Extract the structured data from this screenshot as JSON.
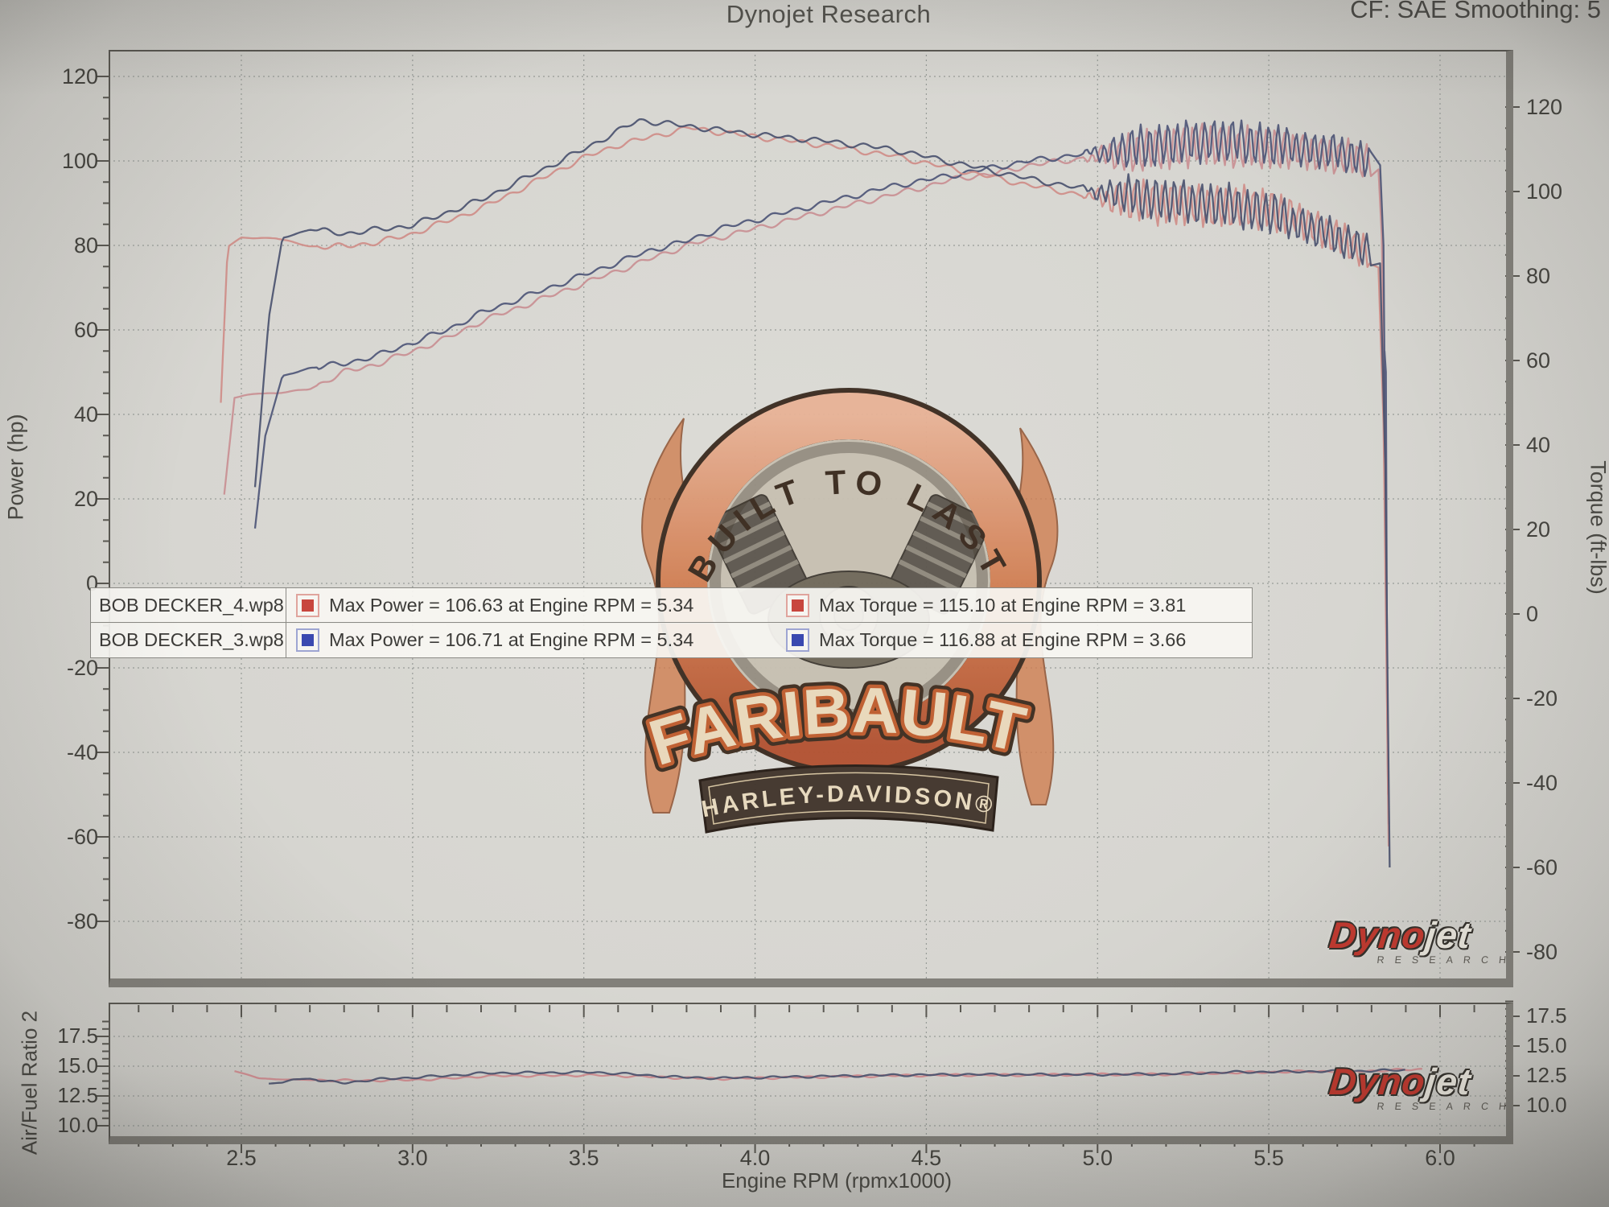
{
  "header": {
    "title": "Dynojet Research",
    "cf_label": "CF: SAE Smoothing: 5"
  },
  "main_chart": {
    "y_left": {
      "label": "Power (hp)"
    },
    "y_right": {
      "label": "Torque (ft-lbs)"
    },
    "x": {
      "label": "Engine RPM (rpmx1000)"
    },
    "legend": {
      "rows": [
        {
          "file": "BOB DECKER_4.wp8",
          "color": "#c8463e",
          "power": "Max Power = 106.63 at Engine RPM = 5.34",
          "torque": "Max Torque = 115.10 at Engine RPM = 3.81"
        },
        {
          "file": "BOB DECKER_3.wp8",
          "color": "#3a49b0",
          "power": "Max Power = 106.71 at Engine RPM = 5.34",
          "torque": "Max Torque = 116.88 at Engine RPM = 3.66"
        }
      ]
    }
  },
  "afr_chart": {
    "label": "Air/Fuel Ratio 2"
  },
  "watermark": {
    "arc_text": "BUILT TO LAST",
    "dealer": "FARIBAULT",
    "brand": "HARLEY-DAVIDSON®"
  },
  "dynojet": {
    "part1": "Dyno",
    "part2": "jet",
    "sub": "RESEARCH"
  },
  "chart_data": [
    {
      "type": "line",
      "title": "Dynojet Research",
      "xlabel": "Engine RPM (rpmx1000)",
      "ylabel_left": "Power (hp)",
      "ylabel_right": "Torque (ft-lbs)",
      "x_ticks": [
        2.5,
        3.0,
        3.5,
        4.0,
        4.5,
        5.0,
        5.5,
        6.0
      ],
      "y_ticks": [
        120,
        100,
        80,
        60,
        40,
        20,
        0,
        -20,
        -40,
        -60,
        -80
      ],
      "xlim": [
        2.1,
        6.2
      ],
      "ylim": [
        -80,
        120
      ],
      "grid": true,
      "legend_position": "upper-left-inside",
      "oscillation": {
        "from": 4.95,
        "to": 5.8,
        "amplitude": 4.8,
        "note": "high-frequency clutch/driveline oscillation on all four traces"
      },
      "series": [
        {
          "name": "power_red",
          "label": "BOB DECKER_4.wp8 Power",
          "axis": "left",
          "color": "#c98f93",
          "max": {
            "value": 106.63,
            "rpm": 5.34
          },
          "points": [
            [
              2.45,
              21
            ],
            [
              2.48,
              44
            ],
            [
              2.55,
              45
            ],
            [
              2.6,
              45
            ],
            [
              2.7,
              46
            ],
            [
              2.8,
              50
            ],
            [
              2.9,
              52
            ],
            [
              3.0,
              55
            ],
            [
              3.1,
              58
            ],
            [
              3.2,
              62
            ],
            [
              3.3,
              65
            ],
            [
              3.4,
              68
            ],
            [
              3.5,
              71
            ],
            [
              3.6,
              74
            ],
            [
              3.7,
              77
            ],
            [
              3.8,
              80
            ],
            [
              3.9,
              82
            ],
            [
              4.0,
              84
            ],
            [
              4.1,
              86
            ],
            [
              4.2,
              88
            ],
            [
              4.3,
              90
            ],
            [
              4.4,
              92
            ],
            [
              4.5,
              94
            ],
            [
              4.6,
              96
            ],
            [
              4.7,
              97
            ],
            [
              4.8,
              99
            ],
            [
              4.9,
              100
            ],
            [
              5.0,
              101
            ],
            [
              5.1,
              102
            ],
            [
              5.2,
              103
            ],
            [
              5.34,
              104
            ],
            [
              5.4,
              103
            ],
            [
              5.5,
              103
            ],
            [
              5.6,
              102
            ],
            [
              5.7,
              101
            ],
            [
              5.8,
              100
            ]
          ],
          "tail": [
            [
              5.82,
              98
            ],
            [
              5.83,
              82
            ],
            [
              5.838,
              40
            ],
            [
              5.843,
              -10
            ],
            [
              5.848,
              -50
            ]
          ]
        },
        {
          "name": "power_blue",
          "label": "BOB DECKER_3.wp8 Power",
          "axis": "left",
          "color": "#4e5677",
          "max": {
            "value": 106.71,
            "rpm": 5.34
          },
          "points": [
            [
              2.54,
              13
            ],
            [
              2.57,
              35
            ],
            [
              2.62,
              49
            ],
            [
              2.7,
              51
            ],
            [
              2.8,
              52
            ],
            [
              2.9,
              54
            ],
            [
              3.0,
              57
            ],
            [
              3.1,
              60
            ],
            [
              3.2,
              64
            ],
            [
              3.3,
              67
            ],
            [
              3.4,
              70
            ],
            [
              3.5,
              73
            ],
            [
              3.6,
              76
            ],
            [
              3.7,
              79
            ],
            [
              3.8,
              81
            ],
            [
              3.9,
              84
            ],
            [
              4.0,
              86
            ],
            [
              4.2,
              90
            ],
            [
              4.4,
              94
            ],
            [
              4.6,
              97
            ],
            [
              4.8,
              100
            ],
            [
              5.0,
              102
            ],
            [
              5.2,
              104
            ],
            [
              5.34,
              105
            ],
            [
              5.5,
              104
            ],
            [
              5.6,
              103
            ],
            [
              5.7,
              102
            ],
            [
              5.8,
              100
            ]
          ],
          "tail": [
            [
              5.825,
              99
            ],
            [
              5.835,
              80
            ],
            [
              5.84,
              30
            ],
            [
              5.838,
              55
            ],
            [
              5.842,
              50
            ],
            [
              5.845,
              -15
            ],
            [
              5.85,
              -57
            ]
          ]
        },
        {
          "name": "torque_red",
          "label": "BOB DECKER_4.wp8 Torque",
          "axis": "right",
          "color": "#cf8d88",
          "max": {
            "value": 115.1,
            "rpm": 3.81
          },
          "points": [
            [
              2.44,
              50
            ],
            [
              2.46,
              87
            ],
            [
              2.5,
              89
            ],
            [
              2.6,
              89
            ],
            [
              2.7,
              87
            ],
            [
              2.8,
              87
            ],
            [
              2.9,
              88
            ],
            [
              3.0,
              90
            ],
            [
              3.1,
              93
            ],
            [
              3.2,
              96
            ],
            [
              3.3,
              100
            ],
            [
              3.4,
              104
            ],
            [
              3.5,
              108
            ],
            [
              3.6,
              111
            ],
            [
              3.7,
              113
            ],
            [
              3.81,
              115.1
            ],
            [
              3.9,
              114
            ],
            [
              4.0,
              113
            ],
            [
              4.2,
              111
            ],
            [
              4.4,
              108.5
            ],
            [
              4.6,
              105
            ],
            [
              4.8,
              101.5
            ],
            [
              5.0,
              98.5
            ],
            [
              5.2,
              97
            ],
            [
              5.34,
              96.5
            ],
            [
              5.5,
              96
            ],
            [
              5.6,
              93
            ],
            [
              5.7,
              89
            ],
            [
              5.8,
              85
            ]
          ],
          "tail": [
            [
              5.82,
              82
            ],
            [
              5.835,
              45
            ],
            [
              5.845,
              -20
            ],
            [
              5.85,
              -55
            ]
          ]
        },
        {
          "name": "torque_blue",
          "label": "BOB DECKER_3.wp8 Torque",
          "axis": "right",
          "color": "#4b536f",
          "max": {
            "value": 116.88,
            "rpm": 3.66
          },
          "points": [
            [
              2.54,
              30
            ],
            [
              2.58,
              70
            ],
            [
              2.62,
              89
            ],
            [
              2.7,
              91
            ],
            [
              2.8,
              90
            ],
            [
              2.9,
              91
            ],
            [
              3.0,
              92
            ],
            [
              3.1,
              95
            ],
            [
              3.2,
              98
            ],
            [
              3.3,
              102
            ],
            [
              3.4,
              106
            ],
            [
              3.5,
              110
            ],
            [
              3.66,
              116.88
            ],
            [
              3.8,
              115.5
            ],
            [
              3.9,
              114.5
            ],
            [
              4.0,
              113.5
            ],
            [
              4.2,
              112
            ],
            [
              4.4,
              110
            ],
            [
              4.6,
              106.5
            ],
            [
              4.8,
              103
            ],
            [
              5.0,
              100
            ],
            [
              5.2,
              98
            ],
            [
              5.4,
              96.5
            ],
            [
              5.5,
              95
            ],
            [
              5.6,
              92
            ],
            [
              5.7,
              89
            ],
            [
              5.8,
              86
            ]
          ],
          "tail": [
            [
              5.825,
              83
            ],
            [
              5.84,
              35
            ],
            [
              5.848,
              -25
            ],
            [
              5.853,
              -60
            ]
          ]
        }
      ]
    },
    {
      "type": "line",
      "ylabel": "Air/Fuel Ratio 2",
      "x_ticks": [
        2.5,
        3.0,
        3.5,
        4.0,
        4.5,
        5.0,
        5.5,
        6.0
      ],
      "y_ticks": [
        17.5,
        15.0,
        12.5,
        10.0
      ],
      "ylim": [
        10,
        20
      ],
      "grid": true,
      "series": [
        {
          "name": "afr_red",
          "label": "BOB DECKER_4.wp8 AFR",
          "color": "#d08a8e",
          "points": [
            [
              2.48,
              14.6
            ],
            [
              2.55,
              14.0
            ],
            [
              2.6,
              13.9
            ],
            [
              2.7,
              13.85
            ],
            [
              2.8,
              13.8
            ],
            [
              2.9,
              13.8
            ],
            [
              3.0,
              13.85
            ],
            [
              3.1,
              13.95
            ],
            [
              3.2,
              14.15
            ],
            [
              3.3,
              14.2
            ],
            [
              3.4,
              14.2
            ],
            [
              3.5,
              14.25
            ],
            [
              3.6,
              14.2
            ],
            [
              3.7,
              14.1
            ],
            [
              3.8,
              14.0
            ],
            [
              3.9,
              13.95
            ],
            [
              4.0,
              14.0
            ],
            [
              4.2,
              14.1
            ],
            [
              4.4,
              14.2
            ],
            [
              4.6,
              14.25
            ],
            [
              4.8,
              14.25
            ],
            [
              5.0,
              14.3
            ],
            [
              5.2,
              14.3
            ],
            [
              5.4,
              14.45
            ],
            [
              5.6,
              14.55
            ],
            [
              5.8,
              14.6
            ],
            [
              5.95,
              14.75
            ]
          ]
        },
        {
          "name": "afr_blue",
          "label": "BOB DECKER_3.wp8 AFR",
          "color": "#4b536f",
          "points": [
            [
              2.58,
              13.55
            ],
            [
              2.62,
              13.6
            ],
            [
              2.65,
              13.9
            ],
            [
              2.7,
              13.95
            ],
            [
              2.75,
              13.7
            ],
            [
              2.8,
              13.6
            ],
            [
              2.9,
              13.9
            ],
            [
              3.0,
              14.05
            ],
            [
              3.1,
              14.2
            ],
            [
              3.2,
              14.4
            ],
            [
              3.3,
              14.45
            ],
            [
              3.4,
              14.45
            ],
            [
              3.5,
              14.5
            ],
            [
              3.6,
              14.4
            ],
            [
              3.7,
              14.2
            ],
            [
              3.8,
              14.05
            ],
            [
              3.9,
              14.0
            ],
            [
              4.0,
              14.05
            ],
            [
              4.2,
              14.15
            ],
            [
              4.4,
              14.25
            ],
            [
              4.6,
              14.3
            ],
            [
              4.8,
              14.3
            ],
            [
              5.0,
              14.3
            ],
            [
              5.2,
              14.35
            ],
            [
              5.4,
              14.5
            ],
            [
              5.6,
              14.55
            ],
            [
              5.8,
              14.6
            ],
            [
              5.9,
              14.7
            ]
          ]
        }
      ]
    }
  ]
}
